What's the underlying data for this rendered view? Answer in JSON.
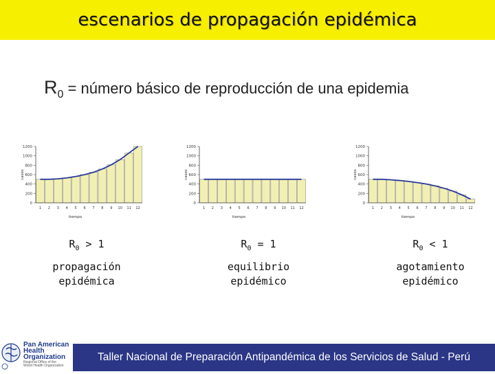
{
  "header": {
    "title": "escenarios de propagación epidémica"
  },
  "subtitle": {
    "r_symbol": "R",
    "r_sub": "0",
    "text": "= número básico de reproducción de una epidemia"
  },
  "charts": [
    {
      "ylabel": "casos",
      "xlabel": "tiempo"
    },
    {
      "ylabel": "casos",
      "xlabel": "tiempo"
    },
    {
      "ylabel": "casos",
      "xlabel": "tiempo"
    }
  ],
  "chart_data": [
    {
      "type": "bar",
      "categories": [
        "1",
        "2",
        "3",
        "4",
        "5",
        "6",
        "7",
        "8",
        "9",
        "10",
        "11",
        "12"
      ],
      "values": [
        500,
        500,
        510,
        530,
        560,
        600,
        650,
        720,
        810,
        920,
        1060,
        1200
      ],
      "ylim": [
        0,
        1200
      ],
      "yticks": [
        "0",
        "200",
        "400",
        "600",
        "800",
        "1000",
        "1200"
      ],
      "xlabel": "tiempo",
      "ylabel": "casos"
    },
    {
      "type": "bar",
      "categories": [
        "1",
        "2",
        "3",
        "4",
        "5",
        "6",
        "7",
        "8",
        "9",
        "10",
        "11",
        "12"
      ],
      "values": [
        500,
        500,
        500,
        500,
        500,
        500,
        500,
        500,
        500,
        500,
        500,
        500
      ],
      "ylim": [
        0,
        1200
      ],
      "yticks": [
        "0",
        "200",
        "400",
        "600",
        "800",
        "1000",
        "1200"
      ],
      "xlabel": "tiempo",
      "ylabel": "casos"
    },
    {
      "type": "bar",
      "categories": [
        "1",
        "2",
        "3",
        "4",
        "5",
        "6",
        "7",
        "8",
        "9",
        "10",
        "11",
        "12"
      ],
      "values": [
        500,
        500,
        490,
        475,
        455,
        430,
        400,
        360,
        310,
        250,
        170,
        80
      ],
      "ylim": [
        0,
        1200
      ],
      "yticks": [
        "0",
        "200",
        "400",
        "600",
        "800",
        "1000",
        "1200"
      ],
      "xlabel": "tiempo",
      "ylabel": "casos"
    }
  ],
  "scenarios": [
    {
      "r": "R",
      "r_sub": "0",
      "relation": "> 1",
      "line1": "propagación",
      "line2": "epidémica"
    },
    {
      "r": "R",
      "r_sub": "0",
      "relation": "= 1",
      "line1": "equilibrio",
      "line2": "epidémico"
    },
    {
      "r": "R",
      "r_sub": "0",
      "relation": "< 1",
      "line1": "agotamiento",
      "line2": "epidémico"
    }
  ],
  "footer": {
    "text": "Taller Nacional de Preparación Antipandémica de los Servicios de Salud - Perú"
  },
  "logo": {
    "line1": "Pan American",
    "line2": "Health",
    "line3": "Organization",
    "tagline1": "Regional Office of the",
    "tagline2": "World Health Organization"
  },
  "colors": {
    "header_bg": "#f7ef00",
    "footer_bg": "#2b3686",
    "bar_fill": "#f2efb4",
    "line_color": "#2a3a9a"
  }
}
